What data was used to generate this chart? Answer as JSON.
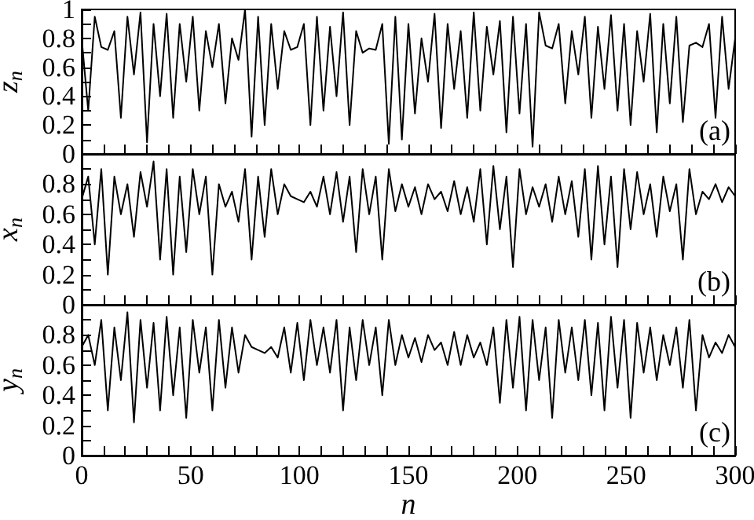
{
  "chart_data": [
    {
      "type": "line",
      "ylabel": "z$_{n}$",
      "annotations": [
        "(a)"
      ],
      "color": "#000000",
      "line_style": "solid",
      "marker": "none",
      "grid": false,
      "tick_labels": "y",
      "x": [
        0,
        3,
        6,
        9,
        12,
        15,
        18,
        21,
        24,
        27,
        30,
        33,
        36,
        39,
        42,
        45,
        48,
        51,
        54,
        57,
        60,
        63,
        66,
        69,
        72,
        75,
        78,
        81,
        84,
        87,
        90,
        93,
        96,
        99,
        102,
        105,
        108,
        111,
        114,
        117,
        120,
        123,
        126,
        129,
        132,
        135,
        138,
        141,
        144,
        147,
        150,
        153,
        156,
        159,
        162,
        165,
        168,
        171,
        174,
        177,
        180,
        183,
        186,
        189,
        192,
        195,
        198,
        201,
        204,
        207,
        210,
        213,
        216,
        219,
        222,
        225,
        228,
        231,
        234,
        237,
        240,
        243,
        246,
        249,
        252,
        255,
        258,
        261,
        264,
        267,
        270,
        273,
        276,
        279,
        282,
        285,
        288,
        291,
        294,
        297,
        300
      ],
      "values": [
        0.8,
        0.3,
        0.95,
        0.74,
        0.72,
        0.85,
        0.25,
        0.95,
        0.55,
        0.98,
        0.08,
        0.9,
        0.4,
        0.97,
        0.25,
        0.9,
        0.5,
        0.95,
        0.3,
        0.85,
        0.6,
        0.9,
        0.35,
        0.8,
        0.65,
        1.0,
        0.12,
        0.95,
        0.2,
        0.9,
        0.45,
        0.85,
        0.72,
        0.74,
        0.9,
        0.2,
        0.95,
        0.3,
        0.88,
        0.4,
        0.98,
        0.2,
        0.85,
        0.7,
        0.73,
        0.72,
        0.9,
        0.07,
        0.95,
        0.1,
        0.9,
        0.28,
        0.8,
        0.5,
        0.97,
        0.18,
        0.9,
        0.45,
        0.85,
        0.25,
        0.98,
        0.3,
        0.88,
        0.55,
        0.92,
        0.15,
        0.95,
        0.28,
        0.9,
        0.05,
        0.98,
        0.75,
        0.73,
        0.9,
        0.35,
        0.85,
        0.55,
        0.95,
        0.25,
        0.88,
        0.45,
        0.96,
        0.3,
        0.9,
        0.2,
        0.85,
        0.5,
        0.97,
        0.15,
        0.9,
        0.35,
        0.95,
        0.22,
        0.75,
        0.77,
        0.74,
        0.9,
        0.25,
        0.95,
        0.45,
        0.8
      ],
      "xlim": [
        0,
        300
      ],
      "xticks": [
        0,
        {
          "value": 10,
          "label": null
        },
        {
          "value": 20,
          "label": null
        },
        {
          "value": 30,
          "label": null
        },
        {
          "value": 40,
          "label": null
        },
        50,
        {
          "value": 60,
          "label": null
        },
        {
          "value": 70,
          "label": null
        },
        {
          "value": 80,
          "label": null
        },
        {
          "value": 90,
          "label": null
        },
        100,
        {
          "value": 110,
          "label": null
        },
        {
          "value": 120,
          "label": null
        },
        {
          "value": 130,
          "label": null
        },
        {
          "value": 140,
          "label": null
        },
        150,
        {
          "value": 160,
          "label": null
        },
        {
          "value": 170,
          "label": null
        },
        {
          "value": 180,
          "label": null
        },
        {
          "value": 190,
          "label": null
        },
        200,
        {
          "value": 210,
          "label": null
        },
        {
          "value": 220,
          "label": null
        },
        {
          "value": 230,
          "label": null
        },
        {
          "value": 240,
          "label": null
        },
        250,
        {
          "value": 260,
          "label": null
        },
        {
          "value": 270,
          "label": null
        },
        {
          "value": 280,
          "label": null
        },
        {
          "value": 290,
          "label": null
        },
        300
      ],
      "ylim": [
        0,
        1
      ],
      "yticks": [
        0,
        {
          "value": 0.1,
          "label": null
        },
        0.2,
        {
          "value": 0.3,
          "label": null
        },
        0.4,
        {
          "value": 0.5,
          "label": null
        },
        0.6,
        {
          "value": 0.7,
          "label": null
        },
        0.8,
        {
          "value": 0.9,
          "label": null
        },
        1
      ]
    },
    {
      "type": "line",
      "ylabel": "x$_{n}$",
      "annotations": [
        "(b)"
      ],
      "color": "#000000",
      "line_style": "solid",
      "marker": "none",
      "grid": false,
      "tick_labels": "y",
      "x": [
        0,
        3,
        6,
        9,
        12,
        15,
        18,
        21,
        24,
        27,
        30,
        33,
        36,
        39,
        42,
        45,
        48,
        51,
        54,
        57,
        60,
        63,
        66,
        69,
        72,
        75,
        78,
        81,
        84,
        87,
        90,
        93,
        96,
        99,
        102,
        105,
        108,
        111,
        114,
        117,
        120,
        123,
        126,
        129,
        132,
        135,
        138,
        141,
        144,
        147,
        150,
        153,
        156,
        159,
        162,
        165,
        168,
        171,
        174,
        177,
        180,
        183,
        186,
        189,
        192,
        195,
        198,
        201,
        204,
        207,
        210,
        213,
        216,
        219,
        222,
        225,
        228,
        231,
        234,
        237,
        240,
        243,
        246,
        249,
        252,
        255,
        258,
        261,
        264,
        267,
        270,
        273,
        276,
        279,
        282,
        285,
        288,
        291,
        294,
        297,
        300
      ],
      "values": [
        0.7,
        0.85,
        0.4,
        0.9,
        0.2,
        0.85,
        0.6,
        0.8,
        0.45,
        0.88,
        0.65,
        0.95,
        0.3,
        0.9,
        0.2,
        0.85,
        0.35,
        0.9,
        0.6,
        0.85,
        0.2,
        0.8,
        0.65,
        0.75,
        0.55,
        0.9,
        0.3,
        0.85,
        0.45,
        0.9,
        0.6,
        0.8,
        0.72,
        0.7,
        0.68,
        0.75,
        0.65,
        0.85,
        0.6,
        0.88,
        0.55,
        0.85,
        0.35,
        0.9,
        0.6,
        0.85,
        0.3,
        0.9,
        0.62,
        0.8,
        0.65,
        0.78,
        0.6,
        0.8,
        0.7,
        0.75,
        0.62,
        0.82,
        0.6,
        0.78,
        0.55,
        0.9,
        0.4,
        0.92,
        0.5,
        0.85,
        0.25,
        0.9,
        0.6,
        0.78,
        0.65,
        0.8,
        0.55,
        0.85,
        0.6,
        0.82,
        0.45,
        0.9,
        0.3,
        0.92,
        0.4,
        0.85,
        0.25,
        0.9,
        0.5,
        0.88,
        0.6,
        0.8,
        0.45,
        0.85,
        0.62,
        0.8,
        0.3,
        0.9,
        0.6,
        0.75,
        0.7,
        0.8,
        0.68,
        0.78,
        0.72
      ],
      "xlim": [
        0,
        300
      ],
      "xticks": [
        0,
        {
          "value": 10,
          "label": null
        },
        {
          "value": 20,
          "label": null
        },
        {
          "value": 30,
          "label": null
        },
        {
          "value": 40,
          "label": null
        },
        50,
        {
          "value": 60,
          "label": null
        },
        {
          "value": 70,
          "label": null
        },
        {
          "value": 80,
          "label": null
        },
        {
          "value": 90,
          "label": null
        },
        100,
        {
          "value": 110,
          "label": null
        },
        {
          "value": 120,
          "label": null
        },
        {
          "value": 130,
          "label": null
        },
        {
          "value": 140,
          "label": null
        },
        150,
        {
          "value": 160,
          "label": null
        },
        {
          "value": 170,
          "label": null
        },
        {
          "value": 180,
          "label": null
        },
        {
          "value": 190,
          "label": null
        },
        200,
        {
          "value": 210,
          "label": null
        },
        {
          "value": 220,
          "label": null
        },
        {
          "value": 230,
          "label": null
        },
        {
          "value": 240,
          "label": null
        },
        250,
        {
          "value": 260,
          "label": null
        },
        {
          "value": 270,
          "label": null
        },
        {
          "value": 280,
          "label": null
        },
        {
          "value": 290,
          "label": null
        },
        300
      ],
      "ylim": [
        0,
        1
      ],
      "yticks": [
        0,
        {
          "value": 0.1,
          "label": null
        },
        0.2,
        {
          "value": 0.3,
          "label": null
        },
        0.4,
        {
          "value": 0.5,
          "label": null
        },
        0.6,
        {
          "value": 0.7,
          "label": null
        },
        0.8,
        {
          "value": 0.9,
          "label": null
        },
        {
          "value": 1,
          "label": null
        }
      ]
    },
    {
      "type": "line",
      "ylabel": "y$_{n}$",
      "xlabel": "n",
      "annotations": [
        "(c)"
      ],
      "color": "#000000",
      "line_style": "solid",
      "marker": "none",
      "grid": false,
      "x": [
        0,
        3,
        6,
        9,
        12,
        15,
        18,
        21,
        24,
        27,
        30,
        33,
        36,
        39,
        42,
        45,
        48,
        51,
        54,
        57,
        60,
        63,
        66,
        69,
        72,
        75,
        78,
        81,
        84,
        87,
        90,
        93,
        96,
        99,
        102,
        105,
        108,
        111,
        114,
        117,
        120,
        123,
        126,
        129,
        132,
        135,
        138,
        141,
        144,
        147,
        150,
        153,
        156,
        159,
        162,
        165,
        168,
        171,
        174,
        177,
        180,
        183,
        186,
        189,
        192,
        195,
        198,
        201,
        204,
        207,
        210,
        213,
        216,
        219,
        222,
        225,
        228,
        231,
        234,
        237,
        240,
        243,
        246,
        249,
        252,
        255,
        258,
        261,
        264,
        267,
        270,
        273,
        276,
        279,
        282,
        285,
        288,
        291,
        294,
        297,
        300
      ],
      "values": [
        0.72,
        0.8,
        0.6,
        0.9,
        0.3,
        0.85,
        0.5,
        0.95,
        0.22,
        0.9,
        0.45,
        0.88,
        0.3,
        0.92,
        0.4,
        0.85,
        0.25,
        0.9,
        0.55,
        0.85,
        0.3,
        0.9,
        0.45,
        0.85,
        0.55,
        0.8,
        0.72,
        0.7,
        0.68,
        0.72,
        0.65,
        0.85,
        0.55,
        0.88,
        0.5,
        0.9,
        0.6,
        0.85,
        0.55,
        0.9,
        0.3,
        0.85,
        0.5,
        0.9,
        0.6,
        0.85,
        0.4,
        0.9,
        0.6,
        0.8,
        0.65,
        0.78,
        0.62,
        0.8,
        0.7,
        0.75,
        0.6,
        0.82,
        0.6,
        0.8,
        0.65,
        0.75,
        0.6,
        0.85,
        0.35,
        0.9,
        0.45,
        0.92,
        0.3,
        0.9,
        0.5,
        0.85,
        0.25,
        0.9,
        0.55,
        0.85,
        0.5,
        0.9,
        0.4,
        0.88,
        0.3,
        0.92,
        0.45,
        0.9,
        0.25,
        0.88,
        0.55,
        0.85,
        0.5,
        0.8,
        0.6,
        0.85,
        0.45,
        0.9,
        0.3,
        0.8,
        0.65,
        0.75,
        0.68,
        0.8,
        0.72
      ],
      "xlim": [
        0,
        300
      ],
      "xticks": [
        0,
        {
          "value": 10,
          "label": null
        },
        {
          "value": 20,
          "label": null
        },
        {
          "value": 30,
          "label": null
        },
        {
          "value": 40,
          "label": null
        },
        50,
        {
          "value": 60,
          "label": null
        },
        {
          "value": 70,
          "label": null
        },
        {
          "value": 80,
          "label": null
        },
        {
          "value": 90,
          "label": null
        },
        100,
        {
          "value": 110,
          "label": null
        },
        {
          "value": 120,
          "label": null
        },
        {
          "value": 130,
          "label": null
        },
        {
          "value": 140,
          "label": null
        },
        150,
        {
          "value": 160,
          "label": null
        },
        {
          "value": 170,
          "label": null
        },
        {
          "value": 180,
          "label": null
        },
        {
          "value": 190,
          "label": null
        },
        200,
        {
          "value": 210,
          "label": null
        },
        {
          "value": 220,
          "label": null
        },
        {
          "value": 230,
          "label": null
        },
        {
          "value": 240,
          "label": null
        },
        250,
        {
          "value": 260,
          "label": null
        },
        {
          "value": 270,
          "label": null
        },
        {
          "value": 280,
          "label": null
        },
        {
          "value": 290,
          "label": null
        },
        300
      ],
      "ylim": [
        0,
        1
      ],
      "yticks": [
        0,
        {
          "value": 0.1,
          "label": null
        },
        0.2,
        {
          "value": 0.3,
          "label": null
        },
        0.4,
        {
          "value": 0.5,
          "label": null
        },
        0.6,
        {
          "value": 0.7,
          "label": null
        },
        0.8,
        {
          "value": 0.9,
          "label": null
        },
        {
          "value": 1,
          "label": null
        }
      ]
    }
  ]
}
